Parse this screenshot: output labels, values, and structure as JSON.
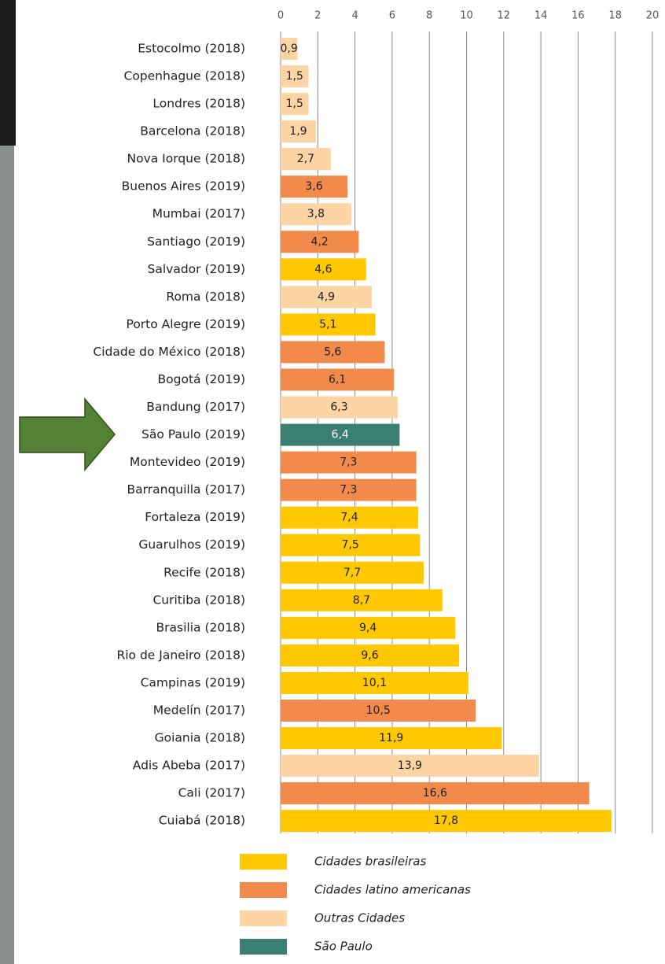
{
  "chart_data": {
    "type": "barh",
    "categories": [
      "Estocolmo (2018)",
      "Copenhague (2018)",
      "Londres (2018)",
      "Barcelona (2018)",
      "Nova Iorque (2018)",
      "Buenos Aires (2019)",
      "Mumbai (2017)",
      "Santiago (2019)",
      "Salvador (2019)",
      "Roma (2018)",
      "Porto Alegre (2019)",
      "Cidade do México (2018)",
      "Bogotá (2019)",
      "Bandung (2017)",
      "São Paulo (2019)",
      "Montevideo (2019)",
      "Barranquilla (2017)",
      "Fortaleza (2019)",
      "Guarulhos (2019)",
      "Recife (2018)",
      "Curitiba (2018)",
      "Brasilia (2018)",
      "Rio de Janeiro (2018)",
      "Campinas (2019)",
      "Medelín (2017)",
      "Goiania (2018)",
      "Adis Abeba (2017)",
      "Cali (2017)",
      "Cuiabá (2018)"
    ],
    "series": [
      {
        "name": "Cidades brasileiras",
        "color": "#ffc800",
        "values": [
          null,
          null,
          null,
          null,
          null,
          null,
          null,
          null,
          4.6,
          null,
          5.1,
          null,
          null,
          null,
          null,
          null,
          null,
          7.4,
          7.5,
          7.7,
          8.7,
          9.4,
          9.6,
          10.1,
          null,
          11.9,
          null,
          null,
          17.8
        ],
        "value_labels": [
          null,
          null,
          null,
          null,
          null,
          null,
          null,
          null,
          "4,6",
          null,
          "5,1",
          null,
          null,
          null,
          null,
          null,
          null,
          "7,4",
          "7,5",
          "7,7",
          "8,7",
          "9,4",
          "9,6",
          "10,1",
          null,
          "11,9",
          null,
          null,
          "17,8"
        ]
      },
      {
        "name": "Cidades latino americanas",
        "color": "#f28a4b",
        "values": [
          null,
          null,
          null,
          null,
          null,
          3.6,
          null,
          4.2,
          null,
          null,
          null,
          5.6,
          6.1,
          null,
          null,
          7.3,
          7.3,
          null,
          null,
          null,
          null,
          null,
          null,
          null,
          10.5,
          null,
          null,
          16.6,
          null
        ],
        "value_labels": [
          null,
          null,
          null,
          null,
          null,
          "3,6",
          null,
          "4,2",
          null,
          null,
          null,
          "5,6",
          "6,1",
          null,
          null,
          "7,3",
          "7,3",
          null,
          null,
          null,
          null,
          null,
          null,
          null,
          "10,5",
          null,
          null,
          "16,6",
          null
        ]
      },
      {
        "name": "Outras Cidades",
        "color": "#fdd4a4",
        "values": [
          0.9,
          1.5,
          1.5,
          1.9,
          2.7,
          null,
          3.8,
          null,
          null,
          4.9,
          null,
          null,
          null,
          6.3,
          null,
          null,
          null,
          null,
          null,
          null,
          null,
          null,
          null,
          null,
          null,
          null,
          13.9,
          null,
          null
        ],
        "value_labels": [
          "0,9",
          "1,5",
          "1,5",
          "1,9",
          "2,7",
          null,
          "3,8",
          null,
          null,
          "4,9",
          null,
          null,
          null,
          "6,3",
          null,
          null,
          null,
          null,
          null,
          null,
          null,
          null,
          null,
          null,
          null,
          null,
          "13,9",
          null,
          null
        ]
      },
      {
        "name": "São Paulo",
        "color": "#3b7f72",
        "values": [
          null,
          null,
          null,
          null,
          null,
          null,
          null,
          null,
          null,
          null,
          null,
          null,
          null,
          null,
          6.4,
          null,
          null,
          null,
          null,
          null,
          null,
          null,
          null,
          null,
          null,
          null,
          null,
          null,
          null
        ],
        "value_labels": [
          null,
          null,
          null,
          null,
          null,
          null,
          null,
          null,
          null,
          null,
          null,
          null,
          null,
          null,
          "6,4",
          null,
          null,
          null,
          null,
          null,
          null,
          null,
          null,
          null,
          null,
          null,
          null,
          null,
          null
        ]
      }
    ],
    "xlim": [
      0,
      20
    ],
    "xticks": [
      0,
      2,
      4,
      6,
      8,
      10,
      12,
      14,
      16,
      18,
      20
    ],
    "grid": true
  }
}
